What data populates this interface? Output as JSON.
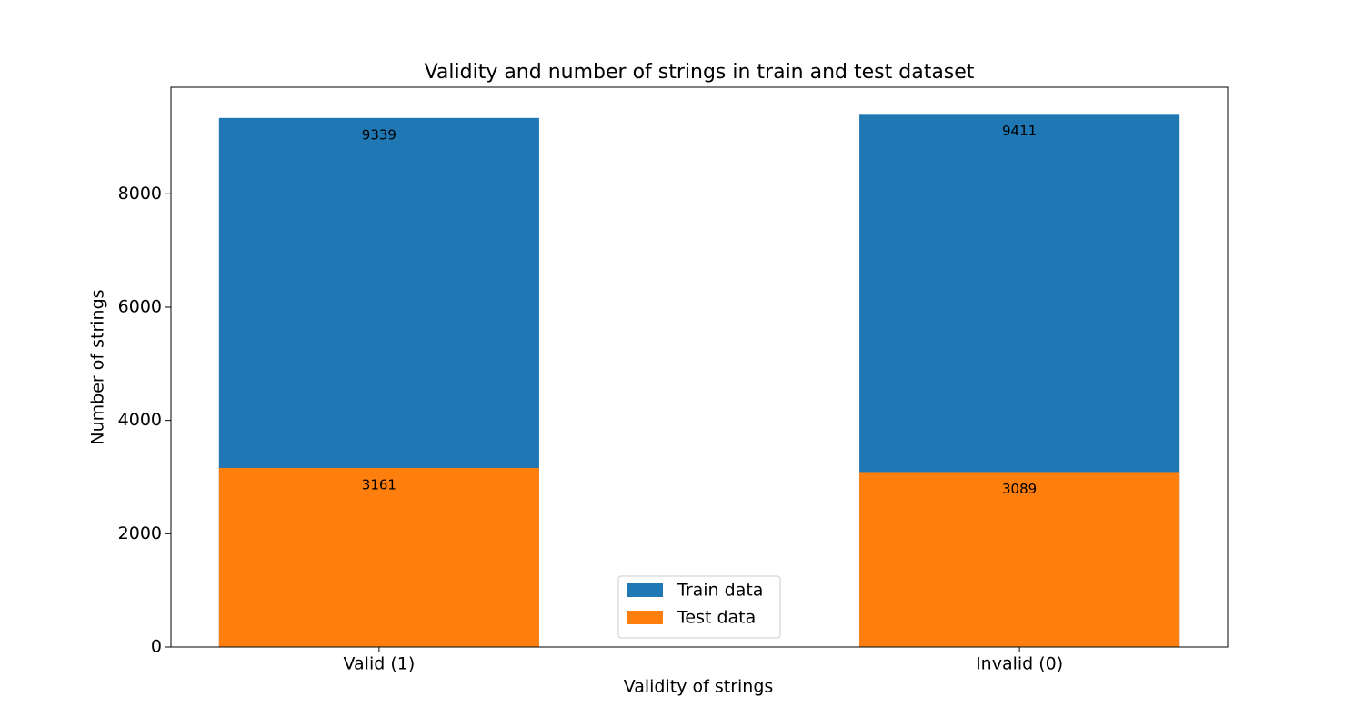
{
  "chart_data": {
    "type": "bar",
    "title": "Validity and number of strings in train and test dataset",
    "x_label": "Validity of strings",
    "y_label": "Number of strings",
    "categories": [
      "Valid (1)",
      "Invalid (0)"
    ],
    "series": [
      {
        "name": "Train data",
        "color": "#1f77b4",
        "values": [
          9339,
          9411
        ]
      },
      {
        "name": "Test data",
        "color": "#ff7f0e",
        "values": [
          3161,
          3089
        ]
      }
    ],
    "ylim": [
      0,
      9881.55
    ],
    "yticks": [
      0,
      2000,
      4000,
      6000,
      8000
    ],
    "legend": "lower center",
    "grid": false
  }
}
